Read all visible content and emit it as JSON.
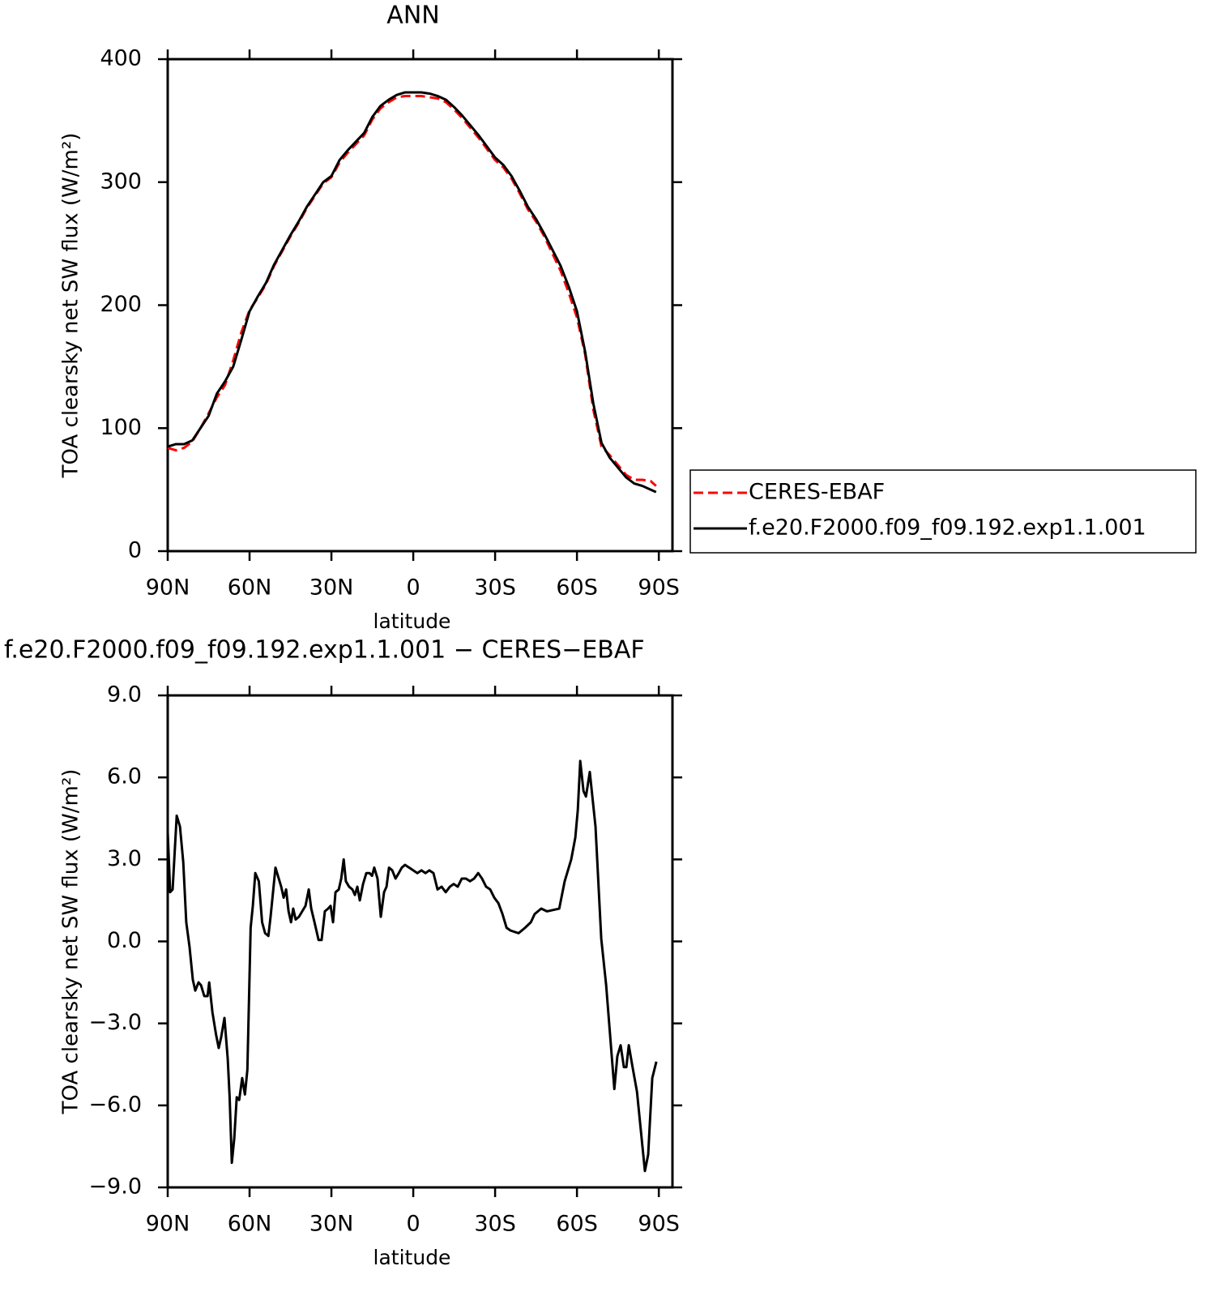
{
  "chart_data": [
    {
      "type": "line",
      "title": "ANN",
      "xlabel": "latitude",
      "ylabel": "TOA clearsky net SW flux (W/m²)",
      "x": [
        90,
        87,
        84,
        81,
        78,
        75,
        72,
        69,
        66,
        63,
        60,
        57,
        54,
        51,
        48,
        45,
        42,
        39,
        36,
        33,
        30,
        27,
        24,
        21,
        18,
        15,
        12,
        9,
        6,
        3,
        0,
        -3,
        -6,
        -9,
        -12,
        -15,
        -18,
        -21,
        -24,
        -27,
        -30,
        -33,
        -36,
        -39,
        -42,
        -45,
        -48,
        -51,
        -54,
        -57,
        -60,
        -63,
        -66,
        -69,
        -72,
        -75,
        -78,
        -81,
        -84,
        -87,
        -89
      ],
      "series": [
        {
          "name": "CERES-EBAF",
          "color": "#ff0000",
          "linestyle": "dashed",
          "values": [
            84,
            82,
            84,
            89,
            100,
            112,
            125,
            135,
            155,
            178,
            196,
            206,
            217,
            232,
            244,
            256,
            267,
            279,
            289,
            299,
            304,
            316,
            324,
            331,
            338,
            351,
            360,
            365,
            369,
            370,
            370,
            370,
            369,
            368,
            365,
            359,
            352,
            344,
            336,
            327,
            318,
            312,
            303,
            291,
            278,
            268,
            256,
            242,
            228,
            210,
            190,
            160,
            115,
            85,
            78,
            70,
            62,
            58,
            58,
            57,
            53
          ]
        },
        {
          "name": "f.e20.F2000.f09_f09.192.exp1.1.001",
          "color": "#000000",
          "linestyle": "solid",
          "values": [
            85,
            87,
            87,
            90,
            100,
            110,
            128,
            138,
            150,
            172,
            195,
            207,
            218,
            233,
            245,
            257,
            268,
            280,
            290,
            300,
            305,
            318,
            326,
            333,
            340,
            353,
            362,
            367,
            371,
            373,
            373,
            373,
            372,
            370,
            367,
            361,
            354,
            346,
            338,
            329,
            320,
            314,
            305,
            293,
            280,
            270,
            258,
            245,
            232,
            215,
            195,
            162,
            120,
            88,
            76,
            68,
            60,
            55,
            53,
            50,
            48
          ]
        }
      ],
      "xlim": [
        90,
        -95
      ],
      "ylim": [
        0,
        400
      ],
      "xticks": [
        {
          "value": 90,
          "label": "90N"
        },
        {
          "value": 60,
          "label": "60N"
        },
        {
          "value": 30,
          "label": "30N"
        },
        0,
        {
          "value": -30,
          "label": "30S"
        },
        {
          "value": -60,
          "label": "60S"
        },
        {
          "value": -90,
          "label": "90S"
        }
      ],
      "yticks": [
        0,
        100,
        200,
        300,
        400
      ],
      "legend": "right"
    },
    {
      "type": "line",
      "title": "f.e20.F2000.f09_f09.192.exp1.1.001 − CERES−EBAF",
      "xlabel": "latitude",
      "ylabel": "TOA clearsky net SW flux (W/m²)",
      "x": [
        90,
        89.1,
        88.2,
        86.7,
        85.5,
        84.3,
        83.2,
        82,
        80.8,
        79.9,
        78.7,
        77.8,
        76.6,
        75.4,
        74.8,
        73.6,
        72.3,
        71.3,
        70.4,
        69.2,
        68,
        67.3,
        66.5,
        65.6,
        64.7,
        63.8,
        62.7,
        61.7,
        60.8,
        59.6,
        58.8,
        57.9,
        56.6,
        55.4,
        54.3,
        53.1,
        52.3,
        51.4,
        50.5,
        49.3,
        48.4,
        47.5,
        46.6,
        45.7,
        44.8,
        44,
        43.1,
        41.9,
        40.7,
        39.5,
        38.3,
        37.4,
        36.2,
        34.7,
        33.6,
        32.4,
        31.2,
        30.3,
        29.4,
        28.5,
        27.3,
        26.4,
        25.5,
        24.7,
        23.5,
        22.3,
        21.4,
        20.5,
        19.6,
        18.4,
        17.2,
        16,
        15.1,
        14.3,
        13.1,
        11.9,
        10.7,
        9.8,
        8.9,
        7.7,
        6.5,
        5.3,
        4.2,
        3,
        1.5,
        0,
        -1.5,
        -3,
        -4.5,
        -5.9,
        -7.4,
        -8.9,
        -10.4,
        -11.9,
        -13.4,
        -14.8,
        -16.3,
        -17.8,
        -19.3,
        -20.8,
        -22.3,
        -23.8,
        -25.2,
        -26.7,
        -28.2,
        -29.7,
        -31.2,
        -32.7,
        -34.2,
        -35.6,
        -38.6,
        -41,
        -43.1,
        -44.5,
        -46.9,
        -49,
        -53.5,
        -55.5,
        -57.9,
        -59.4,
        -60.3,
        -61.2,
        -62.4,
        -63.3,
        -64.7,
        -66.8,
        -68.9,
        -70.7,
        -72.2,
        -73.7,
        -74.8,
        -76,
        -77.2,
        -78.1,
        -79,
        -80.2,
        -82,
        -84,
        -84.9,
        -86.1,
        -87.6,
        -89.1
      ],
      "series": [
        {
          "color": "#000000",
          "linestyle": "solid",
          "values": [
            4.0,
            1.8,
            1.9,
            4.6,
            4.2,
            2.9,
            0.7,
            -0.2,
            -1.4,
            -1.8,
            -1.5,
            -1.6,
            -2.0,
            -2.0,
            -1.5,
            -2.6,
            -3.4,
            -3.9,
            -3.5,
            -2.8,
            -4.3,
            -5.7,
            -8.1,
            -7.2,
            -5.7,
            -5.8,
            -5.0,
            -5.6,
            -4.7,
            0.5,
            1.3,
            2.5,
            2.2,
            0.7,
            0.3,
            0.2,
            0.9,
            1.8,
            2.7,
            2.3,
            2.0,
            1.6,
            1.9,
            1.1,
            0.7,
            1.2,
            0.8,
            0.9,
            1.1,
            1.3,
            1.9,
            1.2,
            0.7,
            0.05,
            0.05,
            1.1,
            1.2,
            1.3,
            0.7,
            1.8,
            1.9,
            2.3,
            3.0,
            2.2,
            2.0,
            1.9,
            1.7,
            2.0,
            1.5,
            2.1,
            2.5,
            2.5,
            2.4,
            2.7,
            2.3,
            0.9,
            1.8,
            2.0,
            2.7,
            2.6,
            2.3,
            2.5,
            2.7,
            2.8,
            2.7,
            2.6,
            2.5,
            2.6,
            2.5,
            2.6,
            2.5,
            1.9,
            2.0,
            1.8,
            2.0,
            2.1,
            2.0,
            2.3,
            2.3,
            2.2,
            2.3,
            2.5,
            2.3,
            2.0,
            1.9,
            1.6,
            1.4,
            1.0,
            0.5,
            0.4,
            0.3,
            0.5,
            0.7,
            1.0,
            1.2,
            1.1,
            1.2,
            2.2,
            3.0,
            3.8,
            4.8,
            6.6,
            5.5,
            5.3,
            6.2,
            4.2,
            0.1,
            -1.6,
            -3.5,
            -5.4,
            -4.2,
            -3.8,
            -4.6,
            -4.6,
            -3.8,
            -4.5,
            -5.5,
            -7.5,
            -8.4,
            -7.8,
            -5.0,
            -4.4
          ]
        }
      ],
      "xlim": [
        90,
        -95
      ],
      "ylim": [
        -9,
        9
      ],
      "xticks": [
        {
          "value": 90,
          "label": "90N"
        },
        {
          "value": 60,
          "label": "60N"
        },
        {
          "value": 30,
          "label": "30N"
        },
        0,
        {
          "value": -30,
          "label": "30S"
        },
        {
          "value": -60,
          "label": "60S"
        },
        {
          "value": -90,
          "label": "90S"
        }
      ],
      "yticks": [
        {
          "value": -9,
          "label": "−9.0"
        },
        {
          "value": -6,
          "label": "−6.0"
        },
        {
          "value": -3,
          "label": "−3.0"
        },
        {
          "value": 0,
          "label": "0.0"
        },
        {
          "value": 3,
          "label": "3.0"
        },
        {
          "value": 6,
          "label": "6.0"
        },
        {
          "value": 9,
          "label": "9.0"
        }
      ]
    }
  ]
}
